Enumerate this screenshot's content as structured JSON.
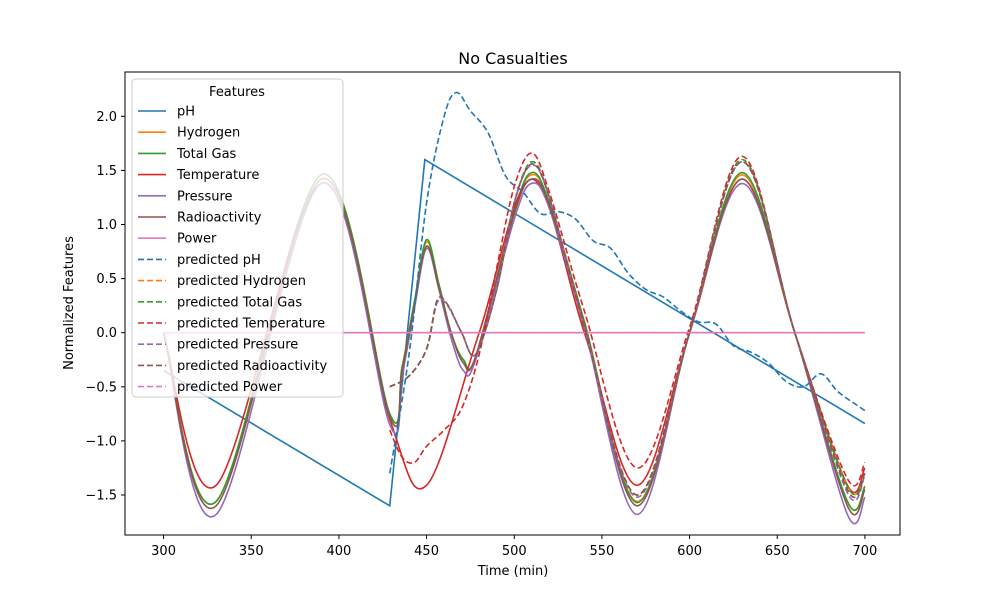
{
  "chart_data": {
    "type": "line",
    "title": "No Casualties",
    "xlabel": "Time (min)",
    "ylabel": "Normalized Features",
    "xlim": [
      278,
      720
    ],
    "ylim": [
      -1.87,
      2.41
    ],
    "x_ticks": [
      300,
      350,
      400,
      450,
      500,
      550,
      600,
      650,
      700
    ],
    "y_ticks": [
      -1.5,
      -1.0,
      -0.5,
      0.0,
      0.5,
      1.0,
      1.5,
      2.0
    ],
    "x_tick_labels": [
      "300",
      "350",
      "400",
      "450",
      "500",
      "550",
      "600",
      "650",
      "700"
    ],
    "y_tick_labels": [
      "−1.5",
      "−1.0",
      "−0.5",
      "0.0",
      "0.5",
      "1.0",
      "1.5",
      "2.0"
    ],
    "grid": false,
    "legend": {
      "title": "Features",
      "placement": "top-left"
    },
    "series": [
      {
        "name": "pH",
        "color": "#1f77b4",
        "style": "solid",
        "x": [
          300,
          429,
          449,
          700
        ],
        "y": [
          -0.35,
          -1.6,
          1.6,
          -0.84
        ]
      },
      {
        "name": "Hydrogen",
        "color": "#ff7f0e",
        "style": "solid",
        "x": [
          300,
          330,
          390,
          429,
          436,
          443,
          450,
          457,
          464,
          471,
          478,
          500,
          510,
          520,
          540,
          570,
          600,
          630,
          660,
          690,
          700
        ],
        "y": [
          0.0,
          -1.56,
          1.46,
          -0.75,
          -0.32,
          0.28,
          0.84,
          0.45,
          0.0,
          -0.25,
          -0.22,
          1.12,
          1.46,
          1.2,
          0.1,
          -1.56,
          0.0,
          1.46,
          0.0,
          -1.56,
          -1.42
        ]
      },
      {
        "name": "Total Gas",
        "color": "#2ca02c",
        "style": "solid",
        "x": [
          300,
          330,
          390,
          429,
          436,
          443,
          450,
          457,
          464,
          471,
          478,
          500,
          510,
          520,
          540,
          570,
          600,
          630,
          660,
          690,
          700
        ],
        "y": [
          0.0,
          -1.56,
          1.46,
          -0.75,
          -0.32,
          0.28,
          0.86,
          0.45,
          0.0,
          -0.25,
          -0.22,
          1.12,
          1.48,
          1.2,
          0.1,
          -1.57,
          0.0,
          1.48,
          0.0,
          -1.56,
          -1.42
        ]
      },
      {
        "name": "Temperature",
        "color": "#d62728",
        "style": "solid",
        "x": [
          300,
          330,
          390,
          429,
          450,
          480,
          510,
          540,
          570,
          600,
          630,
          660,
          690,
          700
        ],
        "y": [
          0.0,
          -1.41,
          1.38,
          -0.8,
          -1.41,
          0.0,
          1.42,
          0.0,
          -1.41,
          0.0,
          1.42,
          0.0,
          -1.41,
          -1.25
        ]
      },
      {
        "name": "Pressure",
        "color": "#9467bd",
        "style": "solid",
        "x": [
          300,
          330,
          390,
          429,
          436,
          443,
          450,
          457,
          464,
          471,
          478,
          500,
          510,
          520,
          540,
          570,
          600,
          630,
          660,
          690,
          700
        ],
        "y": [
          0.0,
          -1.68,
          1.38,
          -0.85,
          -0.4,
          0.22,
          0.78,
          0.4,
          -0.05,
          -0.35,
          -0.25,
          1.05,
          1.38,
          1.15,
          0.05,
          -1.68,
          0.0,
          1.38,
          0.0,
          -1.68,
          -1.52
        ]
      },
      {
        "name": "Radioactivity",
        "color": "#8c564b",
        "style": "solid",
        "x": [
          300,
          330,
          390,
          429,
          436,
          443,
          450,
          457,
          464,
          471,
          478,
          500,
          510,
          520,
          540,
          570,
          600,
          630,
          660,
          690,
          700
        ],
        "y": [
          0.0,
          -1.6,
          1.42,
          -0.78,
          -0.35,
          0.25,
          0.8,
          0.42,
          0.0,
          -0.28,
          -0.22,
          1.1,
          1.42,
          1.18,
          0.08,
          -1.6,
          0.0,
          1.42,
          0.0,
          -1.6,
          -1.45
        ]
      },
      {
        "name": "Power",
        "color": "#e377c2",
        "style": "solid",
        "x": [
          300,
          700
        ],
        "y": [
          0.0,
          0.0
        ]
      },
      {
        "name": "predicted pH",
        "color": "#1f77b4",
        "style": "dashed",
        "x": [
          429,
          440,
          450,
          460,
          467,
          475,
          485,
          495,
          505,
          515,
          525,
          535,
          545,
          555,
          565,
          575,
          585,
          595,
          605,
          615,
          625,
          635,
          645,
          655,
          665,
          675,
          685,
          700
        ],
        "y": [
          -1.3,
          -0.2,
          1.2,
          2.0,
          2.22,
          2.05,
          1.85,
          1.45,
          1.3,
          1.1,
          1.12,
          1.05,
          0.85,
          0.78,
          0.55,
          0.4,
          0.33,
          0.2,
          0.1,
          0.08,
          -0.12,
          -0.18,
          -0.28,
          -0.45,
          -0.5,
          -0.38,
          -0.55,
          -0.72
        ]
      },
      {
        "name": "predicted Hydrogen",
        "color": "#ff7f0e",
        "style": "dashed",
        "x": [
          429,
          440,
          450,
          456,
          462,
          470,
          478,
          490,
          500,
          510,
          520,
          540,
          570,
          600,
          630,
          660,
          690,
          700
        ],
        "y": [
          -0.5,
          -0.4,
          -0.15,
          0.28,
          0.25,
          0.0,
          -0.2,
          0.4,
          1.2,
          1.58,
          1.25,
          0.05,
          -1.5,
          0.0,
          1.58,
          0.0,
          -1.42,
          -1.3
        ]
      },
      {
        "name": "predicted Total Gas",
        "color": "#2ca02c",
        "style": "dashed",
        "x": [
          429,
          440,
          450,
          456,
          462,
          470,
          478,
          490,
          500,
          510,
          520,
          540,
          570,
          600,
          630,
          660,
          690,
          700
        ],
        "y": [
          -0.5,
          -0.4,
          -0.15,
          0.28,
          0.25,
          0.0,
          -0.2,
          0.4,
          1.2,
          1.58,
          1.25,
          0.05,
          -1.5,
          0.0,
          1.6,
          0.0,
          -1.42,
          -1.3
        ]
      },
      {
        "name": "predicted Temperature",
        "color": "#d62728",
        "style": "dashed",
        "x": [
          429,
          436,
          443,
          450,
          460,
          470,
          480,
          490,
          500,
          510,
          520,
          540,
          570,
          600,
          630,
          660,
          690,
          700
        ],
        "y": [
          -0.9,
          -1.15,
          -1.2,
          -1.05,
          -0.9,
          -0.7,
          -0.2,
          0.6,
          1.35,
          1.66,
          1.3,
          0.2,
          -1.25,
          0.05,
          1.63,
          0.0,
          -1.35,
          -1.2
        ]
      },
      {
        "name": "predicted Pressure",
        "color": "#9467bd",
        "style": "dashed",
        "x": [
          429,
          440,
          450,
          456,
          462,
          470,
          478,
          490,
          500,
          510,
          520,
          540,
          570,
          600,
          630,
          660,
          690,
          700
        ],
        "y": [
          -0.5,
          -0.4,
          -0.15,
          0.28,
          0.25,
          0.0,
          -0.2,
          0.4,
          1.2,
          1.55,
          1.25,
          0.05,
          -1.52,
          0.0,
          1.58,
          0.0,
          -1.48,
          -1.32
        ]
      },
      {
        "name": "predicted Radioactivity",
        "color": "#8c564b",
        "style": "dashed",
        "x": [
          429,
          440,
          450,
          456,
          462,
          470,
          478,
          490,
          500,
          510,
          520,
          540,
          570,
          600,
          630,
          660,
          690,
          700
        ],
        "y": [
          -0.5,
          -0.4,
          -0.15,
          0.3,
          0.26,
          0.0,
          -0.2,
          0.4,
          1.2,
          1.56,
          1.25,
          0.05,
          -1.5,
          0.0,
          1.58,
          0.0,
          -1.45,
          -1.3
        ]
      },
      {
        "name": "predicted Power",
        "color": "#e377c2",
        "style": "dashed",
        "x": [
          429,
          700
        ],
        "y": [
          0.0,
          0.0
        ]
      }
    ]
  }
}
